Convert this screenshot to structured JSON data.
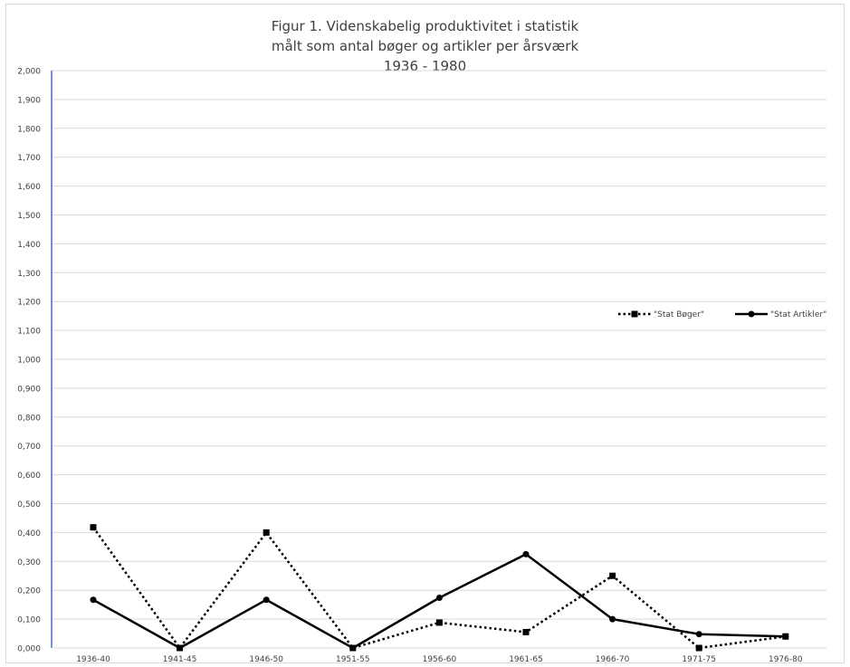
{
  "chart_data": {
    "type": "line",
    "title": [
      "Figur 1. Videnskabelig produktivitet i statistik",
      "målt som antal   bøger og artikler per årsværk",
      "1936 - 1980"
    ],
    "xlabel": "",
    "ylabel": "",
    "categories": [
      "1936-40",
      "1941-45",
      "1946-50",
      "1951-55",
      "1956-60",
      "1961-65",
      "1966-70",
      "1971-75",
      "1976-80"
    ],
    "ylim": [
      0,
      2
    ],
    "yticks": [
      "0,000",
      "0,100",
      "0,200",
      "0,300",
      "0,400",
      "0,500",
      "0,600",
      "0,700",
      "0,800",
      "0,900",
      "1,000",
      "1,100",
      "1,200",
      "1,300",
      "1,400",
      "1,500",
      "1,600",
      "1,700",
      "1,800",
      "1,900",
      "2,000"
    ],
    "grid": true,
    "legend_position": "right",
    "series": [
      {
        "name": "\"Stat Bøger\"",
        "style": "dotted",
        "marker": "square",
        "color": "#000000",
        "values": [
          0.418,
          0.0,
          0.4,
          0.0,
          0.088,
          0.055,
          0.25,
          0.0,
          0.04
        ]
      },
      {
        "name": "\"Stat Artikler\"",
        "style": "solid",
        "marker": "circle",
        "color": "#000000",
        "values": [
          0.167,
          0.0,
          0.167,
          0.0,
          0.174,
          0.325,
          0.1,
          0.048,
          0.04
        ]
      }
    ]
  },
  "colors": {
    "grid": "#d9d9d9",
    "y_axis": "#4472c4",
    "text": "#404040",
    "series": "#000000"
  }
}
